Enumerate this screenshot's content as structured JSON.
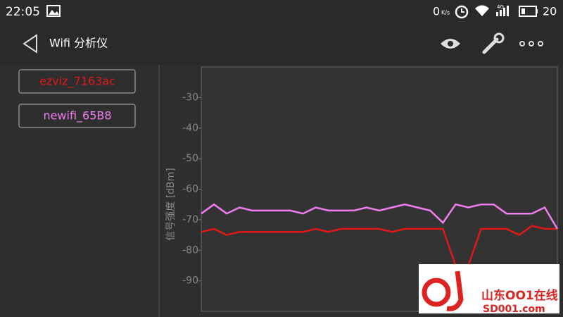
{
  "status_bar": {
    "time": "22:05",
    "net_speed": "0",
    "net_unit": "K/s",
    "network": "4G",
    "battery": "20"
  },
  "app_bar": {
    "title": "Wifi 分析仪"
  },
  "watermark": {
    "name": "山东OO1在线",
    "url": "SD001.com"
  },
  "chart_data": {
    "type": "line",
    "y_label": "信号强度 [dBm]",
    "categories": [
      null,
      null,
      null,
      null,
      null,
      null,
      null,
      null,
      null,
      null,
      null,
      null,
      null,
      null,
      null,
      null,
      null,
      null,
      null,
      null,
      null,
      null,
      null,
      null,
      null,
      null,
      null,
      null,
      null
    ],
    "series": [
      {
        "name": "ezviz_7163ac",
        "color": "#e01818",
        "values": [
          -74,
          -73,
          -75,
          -74,
          -74,
          -74,
          -74,
          -74,
          -74,
          -73,
          -74,
          -73,
          -73,
          -73,
          -73,
          -74,
          -73,
          -73,
          -73,
          -73,
          -85,
          -85,
          -73,
          -73,
          -73,
          -75,
          -72,
          -73,
          -73
        ]
      },
      {
        "name": "newifi_65B8",
        "color": "#f07ef0",
        "values": [
          -68,
          -65,
          -68,
          -66,
          -67,
          -67,
          -67,
          -67,
          -68,
          -66,
          -67,
          -67,
          -67,
          -66,
          -67,
          -66,
          -65,
          -66,
          -67,
          -71,
          -65,
          -66,
          -65,
          -65,
          -68,
          -68,
          -68,
          -66,
          -73
        ]
      }
    ],
    "ylim": [
      -100,
      -20
    ],
    "yticks": [
      -90,
      -80,
      -70,
      -60,
      -50,
      -40,
      -30
    ]
  }
}
